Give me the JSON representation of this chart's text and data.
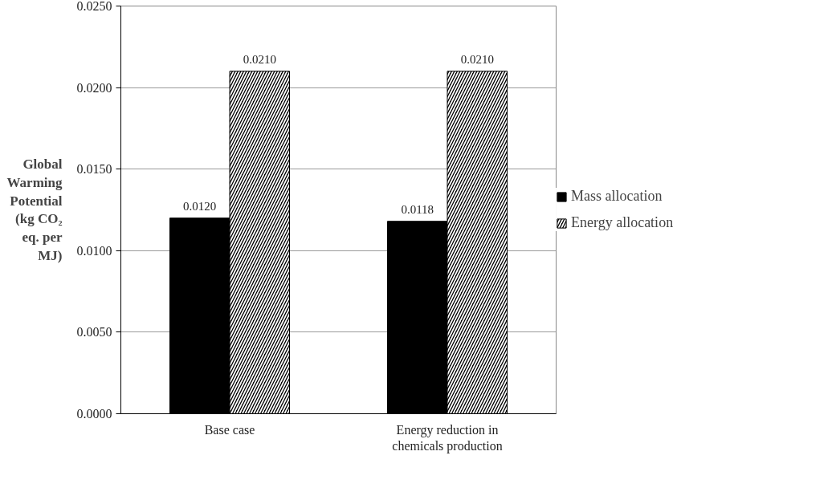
{
  "chart_data": {
    "type": "bar",
    "ylabel": "Global Warming Potential (kg CO₂ eq. per MJ)",
    "categories": [
      "Base case",
      "Energy reduction in chemicals production"
    ],
    "series": [
      {
        "name": "Mass allocation",
        "color": "#000000",
        "values": [
          0.012,
          0.0118
        ]
      },
      {
        "name": "Energy allocation",
        "color": "#000000",
        "values": [
          0.021,
          0.021
        ]
      }
    ],
    "value_labels": [
      [
        "0.0120",
        "0.0118"
      ],
      [
        "0.0210",
        "0.0210"
      ]
    ],
    "ylim": [
      0,
      0.025
    ],
    "yticks": [
      {
        "value": 0,
        "label": "0.0000"
      },
      {
        "value": 0.005,
        "label": "0.0050"
      },
      {
        "value": 0.01,
        "label": "0.0100"
      },
      {
        "value": 0.015,
        "label": "0.0150"
      },
      {
        "value": 0.02,
        "label": "0.0200"
      },
      {
        "value": 0.025,
        "label": "0.0250"
      }
    ],
    "grid": "y",
    "legend": "right"
  }
}
